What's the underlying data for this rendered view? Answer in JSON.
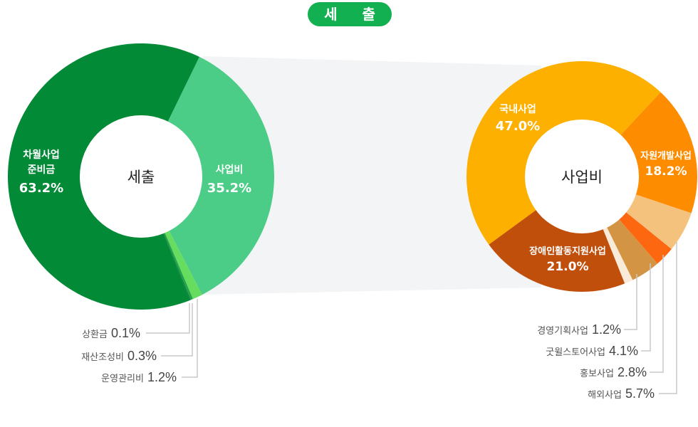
{
  "title": "세 출",
  "chart_data": [
    {
      "type": "pie",
      "variant": "donut",
      "title": "세출",
      "center_label": "세출",
      "slices": [
        {
          "label": "사업비",
          "value": 35.2,
          "color": "#4ccd87"
        },
        {
          "label": "운영관리비",
          "value": 1.2,
          "color": "#66dd5e"
        },
        {
          "label": "재산조성비",
          "value": 0.3,
          "color": "#1ea64a"
        },
        {
          "label": "상환금",
          "value": 0.1,
          "color": "#0c6e31"
        },
        {
          "label": "차월사업준비금",
          "value": 63.2,
          "color": "#038a37"
        }
      ]
    },
    {
      "type": "pie",
      "variant": "donut",
      "title": "사업비",
      "center_label": "사업비",
      "slices": [
        {
          "label": "자원개발사업",
          "value": 18.2,
          "color": "#fd8c00"
        },
        {
          "label": "해외사업",
          "value": 5.7,
          "color": "#f5c27e"
        },
        {
          "label": "홍보사업",
          "value": 2.8,
          "color": "#fd6710"
        },
        {
          "label": "굿윌스토어사업",
          "value": 4.1,
          "color": "#d39543"
        },
        {
          "label": "경영기획사업",
          "value": 1.2,
          "color": "#faebd9"
        },
        {
          "label": "장애인활동지원사업",
          "value": 21.0,
          "color": "#c14f0c"
        },
        {
          "label": "국내사업",
          "value": 47.0,
          "color": "#fdb000"
        }
      ]
    }
  ],
  "left": {
    "center": "세출",
    "inner_labels": [
      {
        "name_lines": [
          "차월사업",
          "준비금"
        ],
        "value": "63.2%"
      },
      {
        "name_lines": [
          "사업비"
        ],
        "value": "35.2%"
      }
    ],
    "callouts": [
      {
        "name": "상환금",
        "value": "0.1%"
      },
      {
        "name": "재산조성비",
        "value": "0.3%"
      },
      {
        "name": "운영관리비",
        "value": "1.2%"
      }
    ]
  },
  "right": {
    "center": "사업비",
    "inner_labels": [
      {
        "name_lines": [
          "국내사업"
        ],
        "value": "47.0%"
      },
      {
        "name_lines": [
          "자원개발사업"
        ],
        "value": "18.2%"
      },
      {
        "name_lines": [
          "장애인활동지원사업"
        ],
        "value": "21.0%"
      }
    ],
    "callouts": [
      {
        "name": "경영기획사업",
        "value": "1.2%"
      },
      {
        "name": "굿윌스토어사업",
        "value": "4.1%"
      },
      {
        "name": "홍보사업",
        "value": "2.8%"
      },
      {
        "name": "해외사업",
        "value": "5.7%"
      }
    ]
  }
}
